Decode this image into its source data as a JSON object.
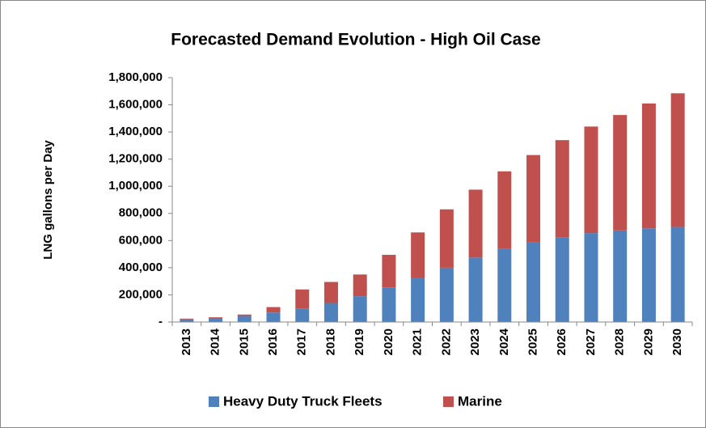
{
  "chart_data": {
    "type": "bar",
    "stacked": true,
    "title": "Forecasted Demand Evolution - High Oil Case",
    "y_label": "LNG gallons per Day",
    "categories": [
      "2013",
      "2014",
      "2015",
      "2016",
      "2017",
      "2018",
      "2019",
      "2020",
      "2021",
      "2022",
      "2023",
      "2024",
      "2025",
      "2026",
      "2027",
      "2028",
      "2029",
      "2030"
    ],
    "series": [
      {
        "name": "Heavy Duty Truck Fleets",
        "color": "#4f81bd",
        "values": [
          20000,
          30000,
          45000,
          70000,
          100000,
          140000,
          190000,
          255000,
          325000,
          400000,
          475000,
          540000,
          585000,
          625000,
          655000,
          675000,
          690000,
          700000
        ]
      },
      {
        "name": "Marine",
        "color": "#c0504d",
        "values": [
          5000,
          5000,
          10000,
          40000,
          140000,
          155000,
          160000,
          240000,
          335000,
          430000,
          500000,
          570000,
          645000,
          715000,
          785000,
          850000,
          920000,
          985000
        ]
      }
    ],
    "ylim": [
      0,
      1800000
    ],
    "yticks": [
      {
        "value": 0,
        "label": "-"
      },
      {
        "value": 200000,
        "label": "200,000"
      },
      {
        "value": 400000,
        "label": "400,000"
      },
      {
        "value": 600000,
        "label": "600,000"
      },
      {
        "value": 800000,
        "label": "800,000"
      },
      {
        "value": 1000000,
        "label": "1,000,000"
      },
      {
        "value": 1200000,
        "label": "1,200,000"
      },
      {
        "value": 1400000,
        "label": "1,400,000"
      },
      {
        "value": 1600000,
        "label": "1,600,000"
      },
      {
        "value": 1800000,
        "label": "1,800,000"
      }
    ],
    "grid": false,
    "legend": "bottom"
  }
}
